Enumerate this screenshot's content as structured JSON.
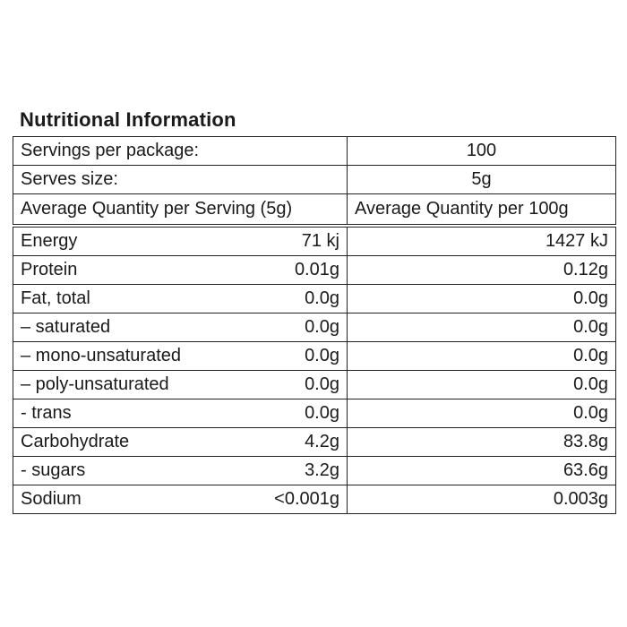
{
  "title": "Nutritional Information",
  "table": {
    "servings": [
      [
        "Servings per package:",
        "100"
      ],
      [
        "Serves size:",
        "5g"
      ]
    ],
    "header": [
      "Average Quantity per Serving (5g)",
      "Average Quantity per 100g"
    ],
    "rows": [
      [
        "Energy",
        "71 kj",
        "1427 kJ"
      ],
      [
        "Protein",
        "0.01g",
        "0.12g"
      ],
      [
        "Fat, total",
        "0.0g",
        "0.0g"
      ],
      [
        "– saturated",
        "0.0g",
        "0.0g"
      ],
      [
        "– mono-unsaturated",
        "0.0g",
        "0.0g"
      ],
      [
        "– poly-unsaturated",
        "0.0g",
        "0.0g"
      ],
      [
        "- trans",
        "0.0g",
        "0.0g"
      ],
      [
        "Carbohydrate",
        "4.2g",
        "83.8g"
      ],
      [
        "- sugars",
        "3.2g",
        "63.6g"
      ],
      [
        "Sodium",
        "<0.001g",
        "0.003g"
      ]
    ]
  }
}
